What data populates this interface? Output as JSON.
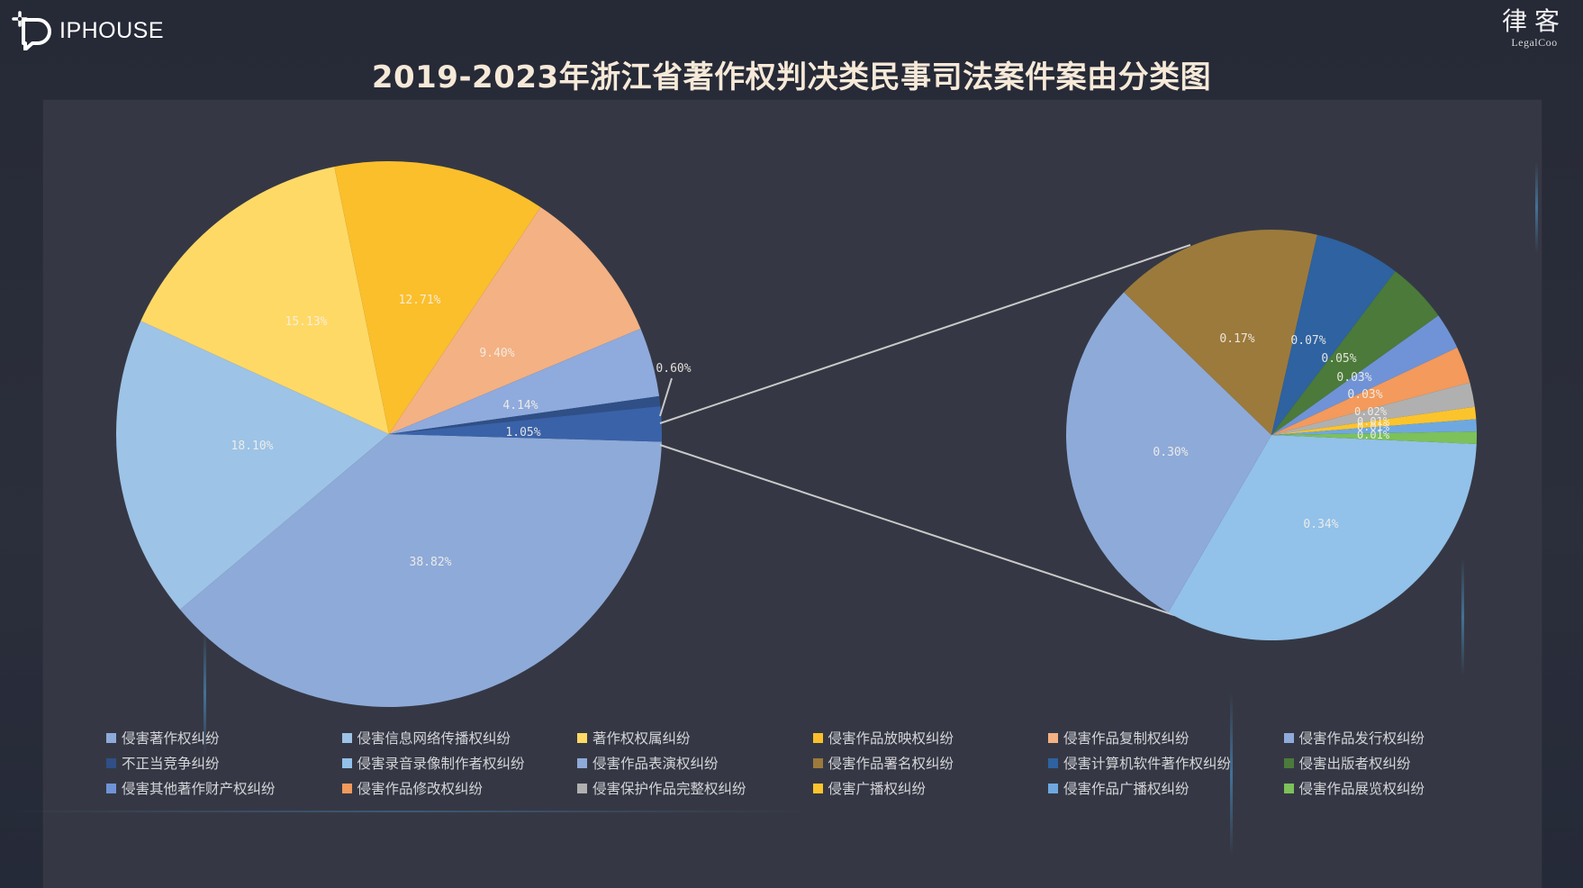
{
  "header": {
    "logo_text": "IPHOUSE",
    "brand_cn": "律客",
    "brand_en": "LegalCoo"
  },
  "title": "2019-2023年浙江省著作权判决类民事司法案件案由分类图",
  "chart_data": {
    "type": "pie",
    "subtype": "pie-of-pie",
    "title": "2019-2023年浙江省著作权判决类民事司法案件案由分类图",
    "main_pie": {
      "slices": [
        {
          "label": "侵害著作权纠纷",
          "value": 38.82,
          "display": "38.82%",
          "color": "#8eaad8"
        },
        {
          "label": "侵害信息网络传播权纠纷",
          "value": 18.1,
          "display": "18.10%",
          "color": "#9dc3e6"
        },
        {
          "label": "著作权权属纠纷",
          "value": 15.13,
          "display": "15.13%",
          "color": "#ffd966"
        },
        {
          "label": "侵害作品放映权纠纷",
          "value": 12.71,
          "display": "12.71%",
          "color": "#fbbf2b"
        },
        {
          "label": "侵害作品复制权纠纷",
          "value": 9.4,
          "display": "9.40%",
          "color": "#f4b183"
        },
        {
          "label": "侵害作品发行权纠纷",
          "value": 4.14,
          "display": "4.14%",
          "color": "#8faadc"
        },
        {
          "label": "不正当竞争纠纷",
          "value": 0.6,
          "display": "0.60%",
          "color": "#2f4f86"
        },
        {
          "label": "侵害其他著作财产权纠纷",
          "value": 1.05,
          "display": "1.05%",
          "color": "#3a62a8"
        }
      ]
    },
    "secondary_pie": {
      "slices": [
        {
          "label": "侵害录音录像制作者权纠纷",
          "value": 0.34,
          "display": "0.34%",
          "color": "#92c1e9"
        },
        {
          "label": "侵害作品表演权纠纷",
          "value": 0.3,
          "display": "0.30%",
          "color": "#8eaad8"
        },
        {
          "label": "侵害作品署名权纠纷",
          "value": 0.17,
          "display": "0.17%",
          "color": "#9c7a3c"
        },
        {
          "label": "侵害计算机软件著作权纠纷",
          "value": 0.07,
          "display": "0.07%",
          "color": "#2e62a0"
        },
        {
          "label": "侵害出版者权纠纷",
          "value": 0.05,
          "display": "0.05%",
          "color": "#4b7a3a"
        },
        {
          "label": "侵害其他著作财产权纠纷",
          "value": 0.03,
          "display": "0.03%",
          "color": "#6f93d6"
        },
        {
          "label": "侵害作品修改权纠纷",
          "value": 0.03,
          "display": "0.03%",
          "color": "#f39a5c"
        },
        {
          "label": "侵害保护作品完整权纠纷",
          "value": 0.02,
          "display": "0.02%",
          "color": "#b0b0b0"
        },
        {
          "label": "侵害广播权纠纷",
          "value": 0.01,
          "display": "0.01%",
          "color": "#fcc42c"
        },
        {
          "label": "侵害作品广播权纠纷",
          "value": 0.01,
          "display": "0.01%",
          "color": "#6fa8e0"
        },
        {
          "label": "侵害作品展览权纠纷",
          "value": 0.01,
          "display": "0.01%",
          "color": "#7cc15a"
        }
      ]
    },
    "legend_position": "bottom",
    "grid": false
  },
  "legend": [
    {
      "label": "侵害著作权纠纷",
      "color": "#8eaad8"
    },
    {
      "label": "侵害信息网络传播权纠纷",
      "color": "#9dc3e6"
    },
    {
      "label": "著作权权属纠纷",
      "color": "#ffd966"
    },
    {
      "label": "侵害作品放映权纠纷",
      "color": "#fbbf2b"
    },
    {
      "label": "侵害作品复制权纠纷",
      "color": "#f4b183"
    },
    {
      "label": "侵害作品发行权纠纷",
      "color": "#8faadc"
    },
    {
      "label": "不正当竞争纠纷",
      "color": "#2f4f86"
    },
    {
      "label": "侵害录音录像制作者权纠纷",
      "color": "#92c1e9"
    },
    {
      "label": "侵害作品表演权纠纷",
      "color": "#8eaad8"
    },
    {
      "label": "侵害作品署名权纠纷",
      "color": "#9c7a3c"
    },
    {
      "label": "侵害计算机软件著作权纠纷",
      "color": "#2e62a0"
    },
    {
      "label": "侵害出版者权纠纷",
      "color": "#4b7a3a"
    },
    {
      "label": "侵害其他著作财产权纠纷",
      "color": "#6f93d6"
    },
    {
      "label": "侵害作品修改权纠纷",
      "color": "#f39a5c"
    },
    {
      "label": "侵害保护作品完整权纠纷",
      "color": "#b0b0b0"
    },
    {
      "label": "侵害广播权纠纷",
      "color": "#fcc42c"
    },
    {
      "label": "侵害作品广播权纠纷",
      "color": "#6fa8e0"
    },
    {
      "label": "侵害作品展览权纠纷",
      "color": "#7cc15a"
    }
  ]
}
